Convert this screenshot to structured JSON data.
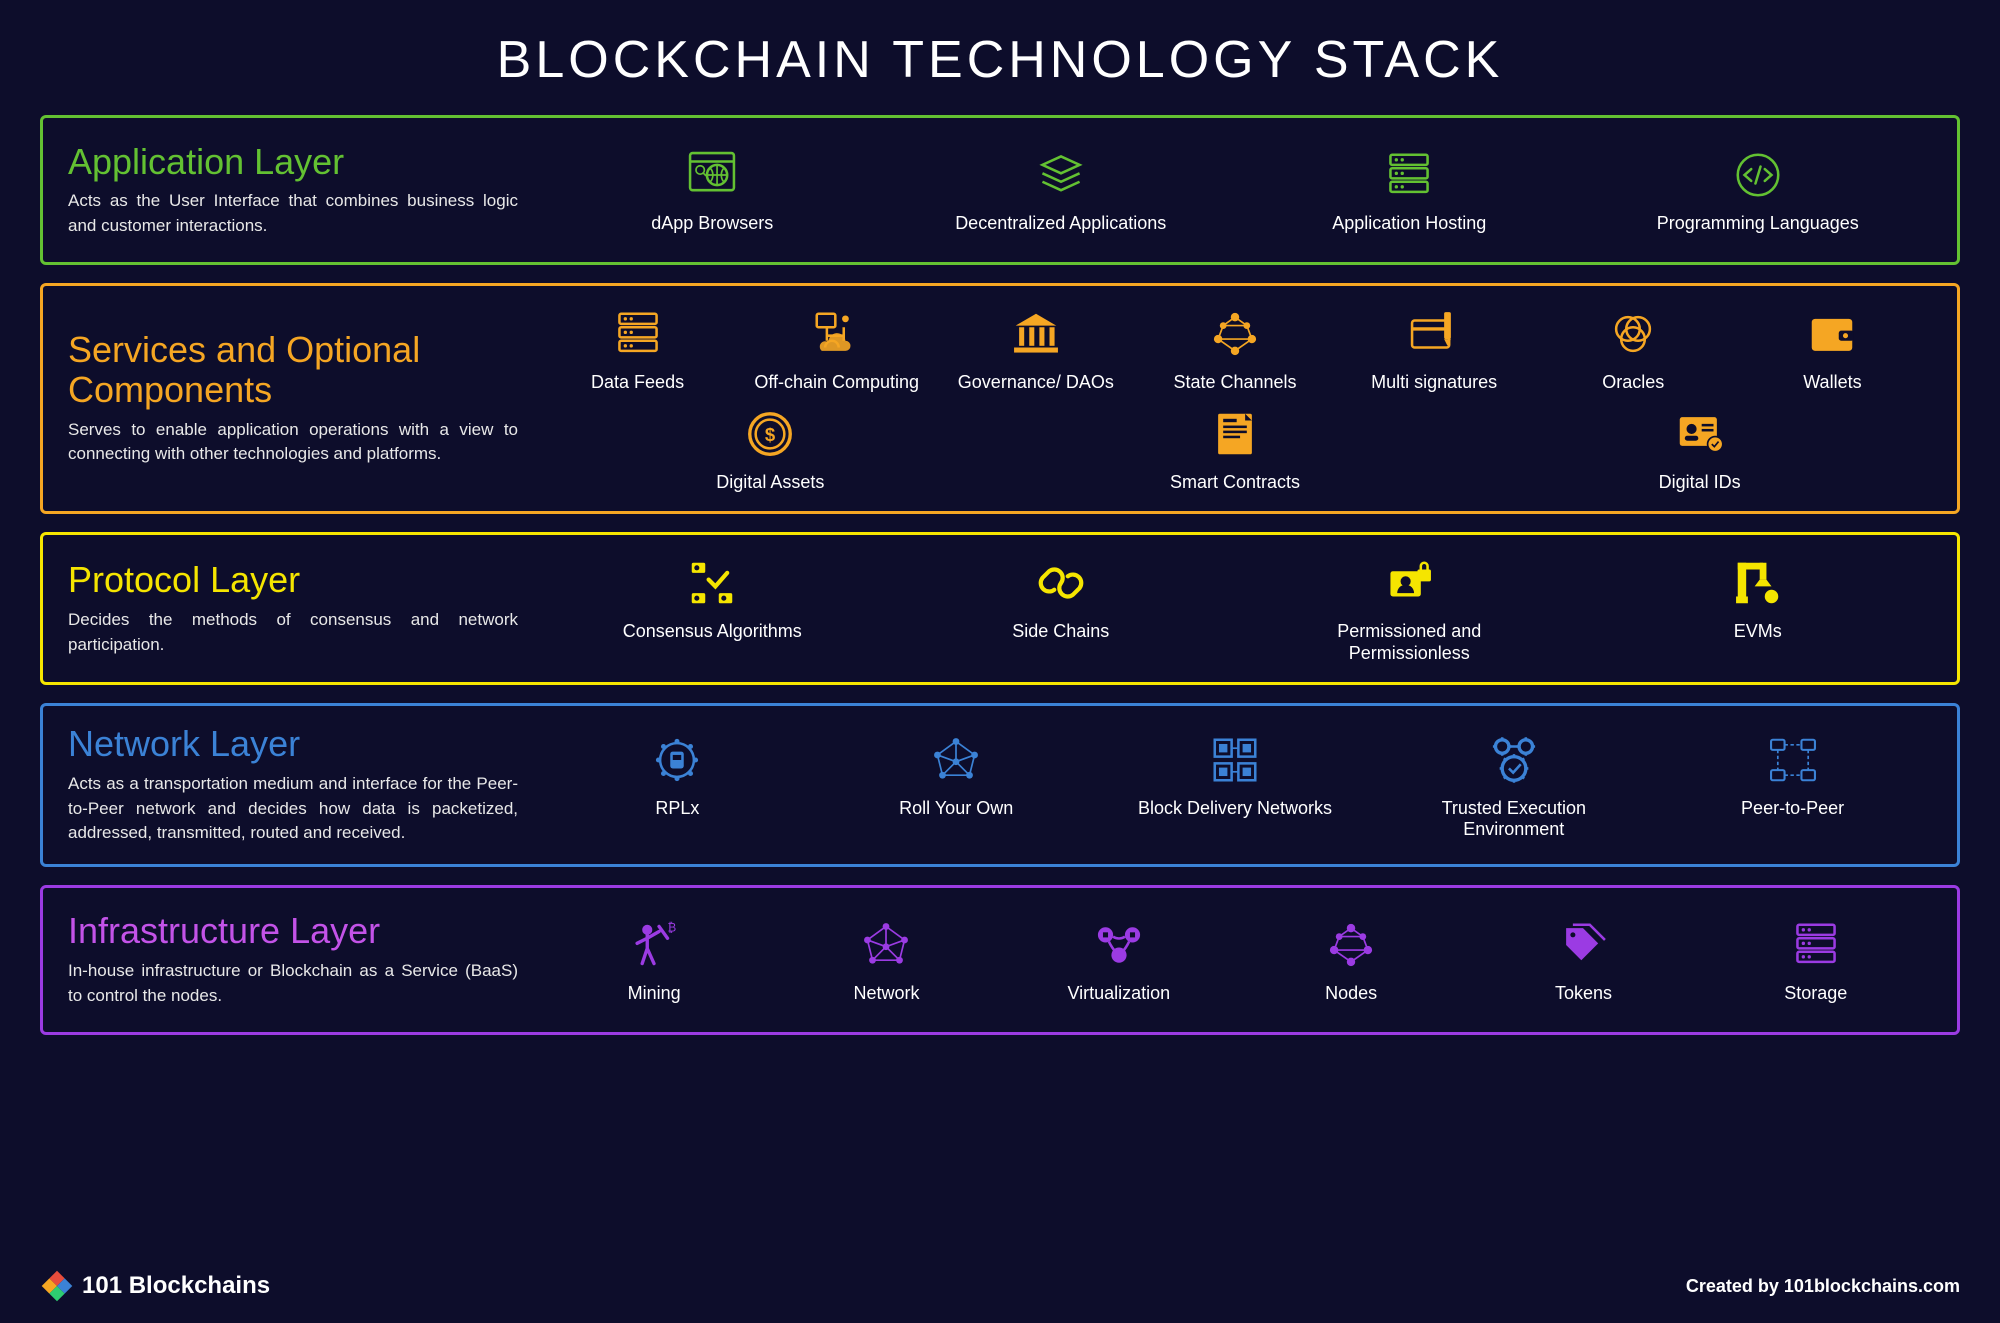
{
  "title": "BLOCKCHAIN TECHNOLOGY STACK",
  "background_color": "#0d0d2b",
  "layers": [
    {
      "id": "application",
      "title": "Application Layer",
      "description": "Acts as the User Interface that combines business logic and customer interactions.",
      "color": "#63c132",
      "title_color": "#63c132",
      "items": [
        {
          "label": "dApp Browsers",
          "icon": "browser-globe"
        },
        {
          "label": "Decentralized Applications",
          "icon": "layers-stack"
        },
        {
          "label": "Application Hosting",
          "icon": "server-rack"
        },
        {
          "label": "Programming Languages",
          "icon": "code-circle"
        }
      ]
    },
    {
      "id": "services",
      "title": "Services and Optional Components",
      "description": "Serves to enable application operations with a view to connecting with other technologies and platforms.",
      "color": "#f5a623",
      "title_color": "#f5a623",
      "rows": 2,
      "items": [
        {
          "label": "Data Feeds",
          "icon": "server-rack"
        },
        {
          "label": "Off-chain Computing",
          "icon": "cloud-nodes"
        },
        {
          "label": "Governance/ DAOs",
          "icon": "bank"
        },
        {
          "label": "State Channels",
          "icon": "mesh"
        },
        {
          "label": "Multi signatures",
          "icon": "card-pen"
        },
        {
          "label": "Oracles",
          "icon": "venn"
        },
        {
          "label": "Wallets",
          "icon": "wallet"
        },
        {
          "label": "Digital Assets",
          "icon": "coin"
        },
        {
          "label": "Smart Contracts",
          "icon": "document"
        },
        {
          "label": "Digital IDs",
          "icon": "id-card"
        }
      ]
    },
    {
      "id": "protocol",
      "title": "Protocol Layer",
      "description": "Decides the methods of consensus and network participation.",
      "color": "#f5e500",
      "title_color": "#f5e500",
      "items": [
        {
          "label": "Consensus Algorithms",
          "icon": "consensus"
        },
        {
          "label": "Side Chains",
          "icon": "chain-link"
        },
        {
          "label": "Permissioned and Permissionless",
          "icon": "user-lock"
        },
        {
          "label": "EVMs",
          "icon": "robot-arm"
        }
      ]
    },
    {
      "id": "network",
      "title": "Network Layer",
      "description": "Acts as a transportation medium and interface for the Peer-to-Peer network and decides how data is packetized, addressed, transmitted, routed and received.",
      "color": "#3b82d6",
      "title_color": "#3b82d6",
      "items": [
        {
          "label": "RPLx",
          "icon": "shuttle"
        },
        {
          "label": "Roll Your Own",
          "icon": "mesh-dots"
        },
        {
          "label": "Block Delivery Networks",
          "icon": "grid-blocks"
        },
        {
          "label": "Trusted Execution Environment",
          "icon": "gears-check"
        },
        {
          "label": "Peer-to-Peer",
          "icon": "p2p"
        }
      ]
    },
    {
      "id": "infrastructure",
      "title": "Infrastructure Layer",
      "description": "In-house infrastructure or Blockchain as a Service (BaaS) to control the nodes.",
      "color": "#9b3be3",
      "title_color": "#c353e8",
      "items": [
        {
          "label": "Mining",
          "icon": "miner"
        },
        {
          "label": "Network",
          "icon": "mesh-dots"
        },
        {
          "label": "Virtualization",
          "icon": "virtual"
        },
        {
          "label": "Nodes",
          "icon": "mesh"
        },
        {
          "label": "Tokens",
          "icon": "tags"
        },
        {
          "label": "Storage",
          "icon": "server-rack"
        }
      ]
    }
  ],
  "footer": {
    "brand": "101 Blockchains",
    "credit": "Created by 101blockchains.com"
  }
}
